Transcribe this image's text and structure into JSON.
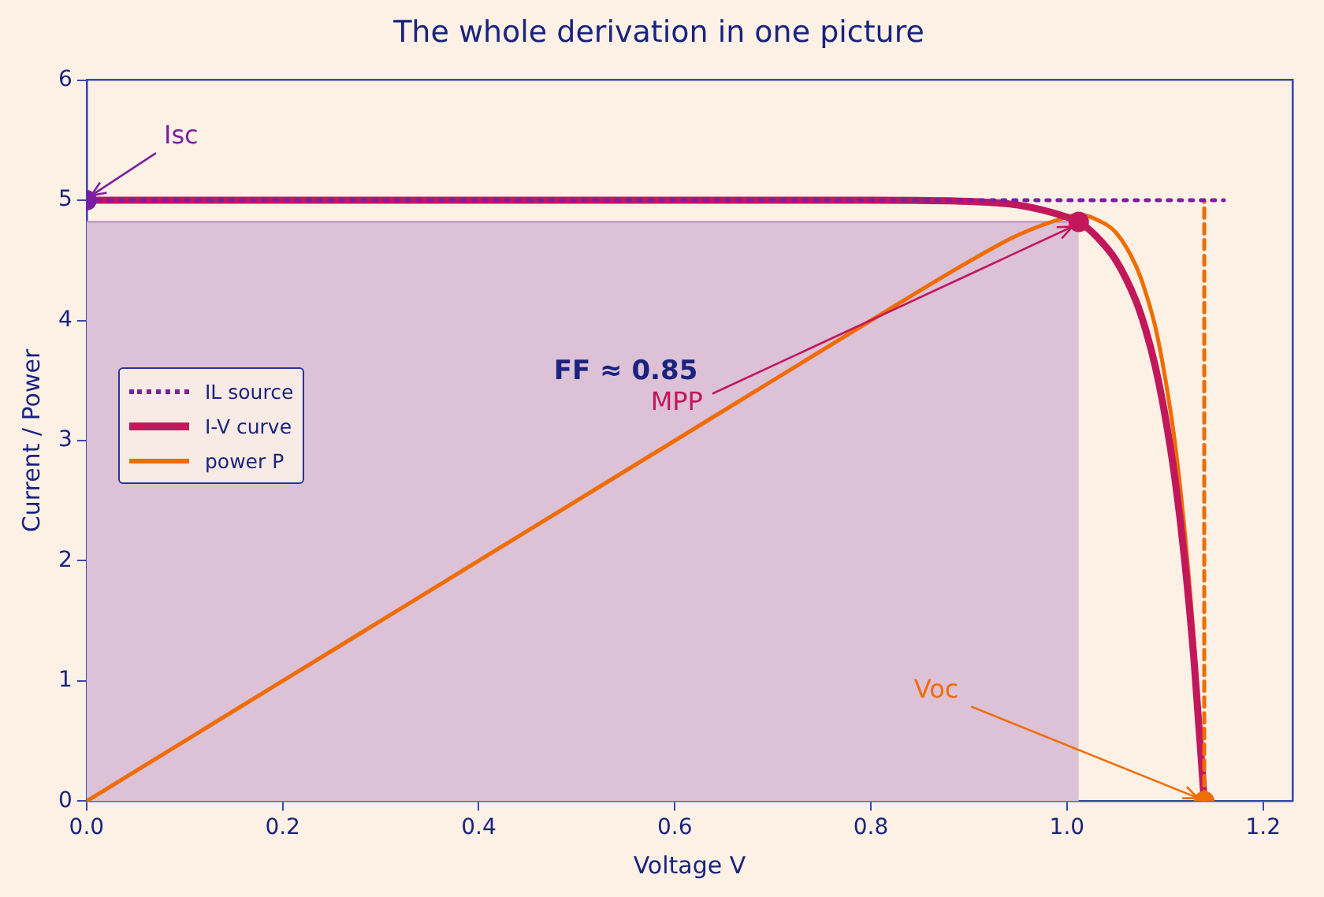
{
  "chart_data": {
    "type": "line",
    "title": "The whole derivation in one picture",
    "xlabel": "Voltage V",
    "ylabel": "Current / Power",
    "xlim": [
      0,
      1.23
    ],
    "xticks": [
      {
        "value": 0,
        "label": "0.0"
      },
      0.2,
      0.4,
      0.6,
      0.8,
      {
        "value": 1,
        "label": "1.0"
      },
      1.2
    ],
    "ylim": [
      0,
      6
    ],
    "yticks": [
      0,
      1,
      2,
      3,
      4,
      5,
      6
    ],
    "grid": false,
    "legend": "left",
    "marker": "none",
    "series": [
      {
        "type": "area",
        "color": "#dcc1d7",
        "x": [
          0,
          1.012
        ],
        "values": [
          4.82,
          4.82
        ]
      },
      {
        "name": "IL source",
        "type": "line",
        "line_style": "dotted",
        "color": "#7b1fa2",
        "x": [
          0,
          1.16
        ],
        "values": [
          5,
          5
        ]
      },
      {
        "type": "line",
        "line_style": "dashed",
        "color": "#ef6c00",
        "x": [
          1.14,
          1.14
        ],
        "values": [
          0,
          5
        ]
      },
      {
        "name": "I-V curve",
        "type": "line",
        "color": "#c2185b",
        "x": [
          0,
          0.2,
          0.4,
          0.6,
          0.8,
          0.9,
          0.95,
          1.0,
          1.012,
          1.03,
          1.05,
          1.07,
          1.08,
          1.09,
          1.1,
          1.11,
          1.12,
          1.13,
          1.14
        ],
        "values": [
          5,
          5,
          5,
          5,
          5,
          4.99,
          4.96,
          4.86,
          4.82,
          4.7,
          4.5,
          4.17,
          3.93,
          3.62,
          3.21,
          2.69,
          2.01,
          1.13,
          0
        ]
      },
      {
        "name": "power P",
        "type": "line",
        "color": "#ef6c00",
        "x": [
          0,
          0.2,
          0.4,
          0.6,
          0.8,
          0.9,
          0.95,
          1.0,
          1.012,
          1.03,
          1.05,
          1.07,
          1.08,
          1.09,
          1.1,
          1.11,
          1.12,
          1.13,
          1.14
        ],
        "values": [
          0,
          1,
          2,
          3,
          4,
          4.49,
          4.71,
          4.86,
          4.88,
          4.84,
          4.73,
          4.46,
          4.24,
          3.95,
          3.53,
          2.99,
          2.25,
          1.28,
          0
        ]
      },
      {
        "type": "scatter",
        "marker": "circle",
        "color": "#c2185b",
        "x": [
          1.012
        ],
        "values": [
          4.82
        ]
      },
      {
        "type": "scatter",
        "marker": "circle",
        "color": "#7b1fa2",
        "x": [
          0
        ],
        "values": [
          5
        ]
      },
      {
        "type": "scatter",
        "marker": "circle",
        "color": "#ef6c00",
        "x": [
          1.14
        ],
        "values": [
          0
        ]
      }
    ],
    "annotations": [
      {
        "text": "Isc",
        "x": 0,
        "y": 5
      },
      {
        "text": "MPP",
        "x": 1.012,
        "y": 4.82
      },
      {
        "text": "Voc",
        "x": 1.14,
        "y": 0
      },
      "FF ≈ 0.85"
    ]
  }
}
